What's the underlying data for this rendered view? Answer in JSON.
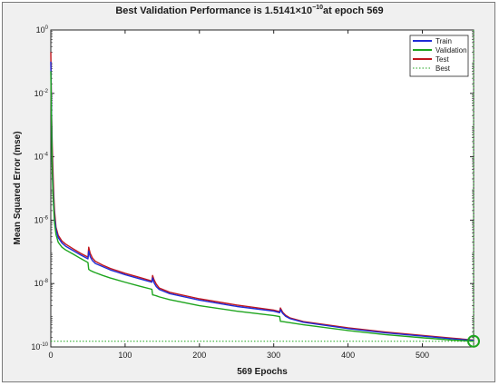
{
  "chart_data": {
    "type": "line",
    "title_prefix": "Best Validation Performance is 1.5141×10",
    "title_exp": "−10",
    "title_suffix": "at epoch 569",
    "xlabel": "569 Epochs",
    "ylabel": "Mean Squared Error  (mse)",
    "xlim": [
      0,
      569
    ],
    "ylim": [
      1e-10,
      1
    ],
    "yscale": "log",
    "x_ticks": [
      0,
      100,
      200,
      300,
      400,
      500
    ],
    "y_ticks": [
      {
        "value": 1,
        "base": "10",
        "exp": "0"
      },
      {
        "value": 0.01,
        "base": "10",
        "exp": "-2"
      },
      {
        "value": 0.0001,
        "base": "10",
        "exp": "-4"
      },
      {
        "value": 1e-06,
        "base": "10",
        "exp": "-6"
      },
      {
        "value": 1e-08,
        "base": "10",
        "exp": "-8"
      },
      {
        "value": 1e-10,
        "base": "10",
        "exp": "-10"
      }
    ],
    "grid": false,
    "legend_position": "top-right",
    "series": [
      {
        "name": "Train",
        "color": "#1f2bd6",
        "x": [
          0,
          1,
          2,
          3,
          4,
          5,
          7,
          10,
          15,
          20,
          30,
          40,
          50,
          51,
          53,
          56,
          60,
          70,
          80,
          100,
          120,
          136,
          137,
          139,
          142,
          146,
          160,
          200,
          250,
          300,
          308,
          309,
          312,
          316,
          322,
          340,
          400,
          450,
          500,
          540,
          569
        ],
        "y": [
          0.1,
          0.002,
          5e-05,
          1e-05,
          3e-06,
          1.2e-06,
          5e-07,
          2.8e-07,
          1.9e-07,
          1.5e-07,
          1.1e-07,
          8e-08,
          6e-08,
          1.05e-07,
          7e-08,
          5.3e-08,
          4.3e-08,
          3.4e-08,
          2.7e-08,
          1.9e-08,
          1.4e-08,
          1.1e-08,
          1.5e-08,
          1.05e-08,
          8e-09,
          6.5e-09,
          4.8e-09,
          3e-09,
          1.9e-09,
          1.35e-09,
          1.2e-09,
          1.5e-09,
          1.15e-09,
          9.3e-10,
          7.8e-10,
          6e-10,
          3.8e-10,
          2.8e-10,
          2.2e-10,
          1.8e-10,
          1.6e-10
        ]
      },
      {
        "name": "Validation",
        "color": "#1ea51e",
        "x": [
          0,
          1,
          2,
          3,
          4,
          5,
          7,
          10,
          15,
          20,
          30,
          40,
          50,
          51,
          53,
          56,
          60,
          70,
          80,
          100,
          120,
          136,
          137,
          139,
          142,
          146,
          160,
          200,
          250,
          300,
          308,
          309,
          312,
          316,
          322,
          340,
          400,
          450,
          500,
          540,
          569
        ],
        "y": [
          0.05,
          0.001,
          3e-05,
          6e-06,
          2e-06,
          8e-07,
          3.5e-07,
          2e-07,
          1.4e-07,
          1.15e-07,
          8.5e-08,
          6.2e-08,
          4.6e-08,
          2.8e-08,
          2.6e-08,
          2.4e-08,
          2.2e-08,
          1.8e-08,
          1.5e-08,
          1.1e-08,
          8.2e-09,
          6.6e-09,
          4.4e-09,
          4.3e-09,
          4.1e-09,
          3.8e-09,
          3.1e-09,
          2e-09,
          1.35e-09,
          9.8e-10,
          9.1e-10,
          6.4e-10,
          6.3e-10,
          6.1e-10,
          5.8e-10,
          5e-10,
          3.3e-10,
          2.45e-10,
          1.95e-10,
          1.65e-10,
          1.5141e-10
        ]
      },
      {
        "name": "Test",
        "color": "#c0161d",
        "x": [
          0,
          1,
          2,
          3,
          4,
          5,
          7,
          10,
          15,
          20,
          30,
          40,
          50,
          51,
          53,
          56,
          60,
          70,
          80,
          100,
          120,
          136,
          137,
          139,
          142,
          146,
          160,
          200,
          250,
          300,
          308,
          309,
          312,
          316,
          322,
          340,
          400,
          450,
          500,
          540,
          569
        ],
        "y": [
          0.2,
          0.002,
          0.0002,
          3e-05,
          6e-06,
          2e-06,
          6e-07,
          3.3e-07,
          2.2e-07,
          1.75e-07,
          1.25e-07,
          9e-08,
          6.8e-08,
          1.4e-07,
          9e-08,
          6.4e-08,
          5e-08,
          3.8e-08,
          3e-08,
          2.1e-08,
          1.55e-08,
          1.2e-08,
          1.8e-08,
          1.3e-08,
          9.5e-09,
          7.2e-09,
          5.3e-09,
          3.3e-09,
          2.1e-09,
          1.45e-09,
          1.3e-09,
          1.7e-09,
          1.25e-09,
          1e-09,
          8.2e-10,
          6.3e-10,
          4e-10,
          2.95e-10,
          2.3e-10,
          1.9e-10,
          1.65e-10
        ]
      }
    ],
    "best": {
      "name": "Best",
      "color": "#1ea51e",
      "x": 569,
      "y": 1.5141e-10
    }
  }
}
